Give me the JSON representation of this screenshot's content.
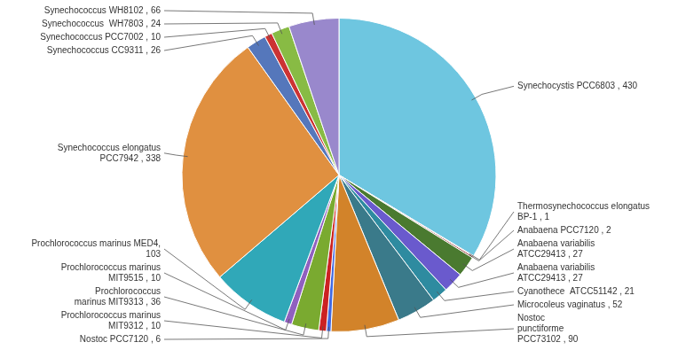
{
  "chart_data": {
    "type": "pie",
    "categories": [
      "Synechocystis PCC6803 , 430",
      "Thermosynechococcus elongatus\nBP-1 , 1",
      "Anabaena PCC7120 , 2",
      "Anabaena variabilis\nATCC29413 , 27",
      "Anabaena variabilis\nATCC29413 , 27",
      "Cyanothece  ATCC51142 , 21",
      "Microcoleus vaginatus , 52",
      "Nostoc\npunctiforme\nPCC73102 , 90",
      "Nostoc PCC7120 , 6",
      "Prochlorococcus marinus\nMIT9312 , 10",
      "Prochlorococcus\nmarinus MIT9313 , 36",
      "Prochlorococcus marinus\nMIT9515 , 10",
      "Prochlorococcus marinus MED4,\n103",
      "Synechococcus elongatus\nPCC7942 , 338",
      "Synechococcus CC9311 , 26",
      "Synechococcus PCC7002 , 10",
      "Synechococcus  WH7803 , 24",
      "Synechococcus WH8102 , 66"
    ],
    "values": [
      430,
      1,
      2,
      27,
      27,
      21,
      52,
      90,
      6,
      10,
      36,
      10,
      103,
      338,
      26,
      10,
      24,
      66
    ],
    "colors": [
      "#6ec6e0",
      "#b03030",
      "#8b1a1a",
      "#4a7a30",
      "#6a5acd",
      "#2e8ba0",
      "#3a7a8a",
      "#d2832a",
      "#4169e1",
      "#cc2222",
      "#7aaa30",
      "#9060c0",
      "#30a8b8",
      "#e09040",
      "#5577bb",
      "#cc3333",
      "#88bb44",
      "#9988cc"
    ]
  }
}
